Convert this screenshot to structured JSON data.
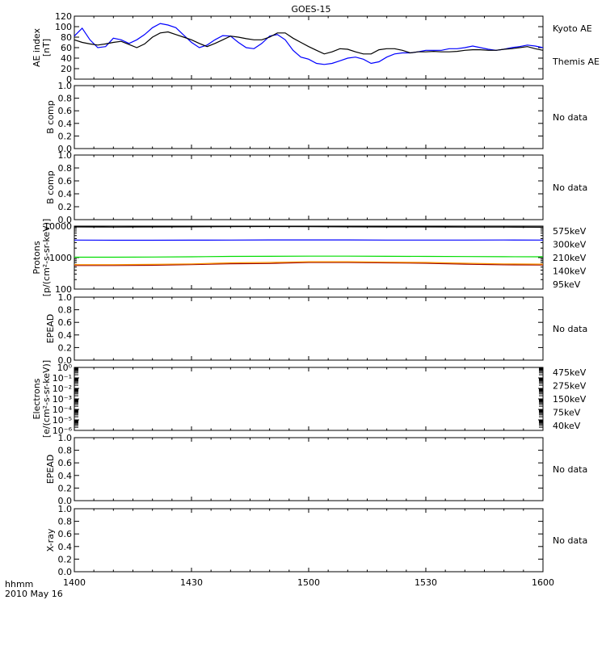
{
  "title": "GOES-15",
  "time_axis": {
    "format_label": "hhmm",
    "date_label": "2010 May 16",
    "ticks": [
      "1400",
      "1430",
      "1500",
      "1530",
      "1600"
    ],
    "start_min": 0,
    "end_min": 120
  },
  "chart_data": [
    {
      "id": "ae",
      "type": "line",
      "ylabel_lines": [
        "AE index",
        "[nT]"
      ],
      "ylim": [
        0,
        120
      ],
      "scale": "linear",
      "yticks": [
        "0",
        "20",
        "40",
        "60",
        "80",
        "100",
        "120"
      ],
      "tick_values": [
        0,
        20,
        40,
        60,
        80,
        100,
        120
      ],
      "x_minutes": [
        0,
        2,
        4,
        6,
        8,
        10,
        12,
        14,
        16,
        18,
        20,
        22,
        24,
        26,
        28,
        30,
        32,
        34,
        36,
        38,
        40,
        42,
        44,
        46,
        48,
        50,
        52,
        54,
        56,
        58,
        60,
        62,
        64,
        66,
        68,
        70,
        72,
        74,
        76,
        78,
        80,
        82,
        84,
        86,
        88,
        90,
        92,
        94,
        96,
        98,
        100,
        102,
        104,
        106,
        108,
        110,
        112,
        114,
        116,
        118,
        120
      ],
      "series": [
        {
          "name": "Kyoto AE",
          "color": "#0000ff",
          "values": [
            82,
            97,
            75,
            60,
            62,
            78,
            75,
            68,
            75,
            85,
            98,
            106,
            103,
            98,
            84,
            70,
            60,
            65,
            75,
            83,
            82,
            70,
            60,
            58,
            68,
            82,
            85,
            75,
            55,
            42,
            38,
            30,
            28,
            30,
            35,
            40,
            42,
            38,
            30,
            33,
            42,
            48,
            50,
            50,
            52,
            55,
            55,
            55,
            58,
            58,
            60,
            63,
            60,
            57,
            55,
            57,
            60,
            62,
            65,
            63,
            60
          ]
        },
        {
          "name": "Themis AE",
          "color": "#000000",
          "values": [
            75,
            70,
            67,
            65,
            67,
            70,
            72,
            66,
            60,
            67,
            80,
            88,
            90,
            85,
            80,
            75,
            68,
            62,
            68,
            75,
            82,
            80,
            77,
            75,
            75,
            80,
            88,
            88,
            78,
            70,
            62,
            55,
            48,
            52,
            58,
            57,
            52,
            48,
            48,
            56,
            58,
            58,
            55,
            50,
            52,
            52,
            53,
            52,
            52,
            53,
            55,
            56,
            56,
            55,
            55,
            57,
            58,
            60,
            62,
            58,
            55
          ]
        }
      ]
    },
    {
      "id": "bcomp1",
      "type": "line",
      "ylabel_lines": [
        "B comp"
      ],
      "ylim": [
        0,
        1
      ],
      "scale": "linear",
      "yticks": [
        "0.0",
        "0.2",
        "0.4",
        "0.6",
        "0.8",
        "1.0"
      ],
      "tick_values": [
        0,
        0.2,
        0.4,
        0.6,
        0.8,
        1.0
      ],
      "status": "No data",
      "series": []
    },
    {
      "id": "bcomp2",
      "type": "line",
      "ylabel_lines": [
        "B comp"
      ],
      "ylim": [
        0,
        1
      ],
      "scale": "linear",
      "yticks": [
        "0.0",
        "0.2",
        "0.4",
        "0.6",
        "0.8",
        "1.0"
      ],
      "tick_values": [
        0,
        0.2,
        0.4,
        0.6,
        0.8,
        1.0
      ],
      "status": "No data",
      "series": []
    },
    {
      "id": "protons",
      "type": "line",
      "ylabel_lines": [
        "Protons",
        "[p/(cm²-s-sr-keV)]"
      ],
      "ylim": [
        100,
        10000
      ],
      "scale": "log",
      "yticks": [
        "100",
        "1000",
        "10000"
      ],
      "tick_values": [
        100,
        1000,
        10000
      ],
      "x_minutes": [
        0,
        10,
        20,
        30,
        40,
        50,
        60,
        70,
        80,
        90,
        100,
        110,
        120
      ],
      "series": [
        {
          "name": "575keV",
          "color": "#990000",
          "values": [
            560,
            560,
            570,
            600,
            640,
            650,
            700,
            700,
            680,
            660,
            620,
            590,
            580
          ]
        },
        {
          "name": "300keV",
          "color": "#ff9900",
          "values": [
            600,
            600,
            610,
            630,
            680,
            700,
            740,
            740,
            720,
            700,
            660,
            630,
            620
          ]
        },
        {
          "name": "210keV",
          "color": "#00dd00",
          "values": [
            1030,
            1030,
            1040,
            1060,
            1090,
            1100,
            1110,
            1110,
            1100,
            1090,
            1080,
            1070,
            1060
          ]
        },
        {
          "name": "140keV",
          "color": "#0000ff",
          "values": [
            3600,
            3550,
            3550,
            3580,
            3600,
            3650,
            3650,
            3650,
            3600,
            3600,
            3600,
            3620,
            3600
          ]
        },
        {
          "name": "95keV",
          "color": "#000000",
          "values": [
            9400,
            9300,
            9400,
            9500,
            9600,
            9700,
            9600,
            9500,
            9400,
            9400,
            9300,
            9300,
            9200
          ]
        }
      ]
    },
    {
      "id": "epead1",
      "type": "line",
      "ylabel_lines": [
        "EPEAD"
      ],
      "ylim": [
        0,
        1
      ],
      "scale": "linear",
      "yticks": [
        "0.0",
        "0.2",
        "0.4",
        "0.6",
        "0.8",
        "1.0"
      ],
      "tick_values": [
        0,
        0.2,
        0.4,
        0.6,
        0.8,
        1.0
      ],
      "status": "No data",
      "series": []
    },
    {
      "id": "electrons",
      "type": "line",
      "ylabel_lines": [
        "Electrons",
        "[e/(cm²-s-sr-keV)]"
      ],
      "ylim": [
        -6,
        0
      ],
      "scale": "log",
      "yticks": [
        "10⁰",
        "10⁻¹",
        "10⁻²",
        "10⁻³",
        "10⁻⁴",
        "10⁻⁵",
        "10⁻⁶"
      ],
      "tick_values": [
        0,
        -1,
        -2,
        -3,
        -4,
        -5,
        -6
      ],
      "series": [
        {
          "name": "475keV",
          "color": "#990000",
          "values": []
        },
        {
          "name": "275keV",
          "color": "#ff9900",
          "values": []
        },
        {
          "name": "150keV",
          "color": "#00dd00",
          "values": []
        },
        {
          "name": "75keV",
          "color": "#0000ff",
          "values": []
        },
        {
          "name": "40keV",
          "color": "#000000",
          "values": []
        }
      ]
    },
    {
      "id": "epead2",
      "type": "line",
      "ylabel_lines": [
        "EPEAD"
      ],
      "ylim": [
        0,
        1
      ],
      "scale": "linear",
      "yticks": [
        "0.0",
        "0.2",
        "0.4",
        "0.6",
        "0.8",
        "1.0"
      ],
      "tick_values": [
        0,
        0.2,
        0.4,
        0.6,
        0.8,
        1.0
      ],
      "status": "No data",
      "series": []
    },
    {
      "id": "xray",
      "type": "line",
      "ylabel_lines": [
        "X-ray"
      ],
      "ylim": [
        0,
        1
      ],
      "scale": "linear",
      "yticks": [
        "0.0",
        "0.2",
        "0.4",
        "0.6",
        "0.8",
        "1.0"
      ],
      "tick_values": [
        0,
        0.2,
        0.4,
        0.6,
        0.8,
        1.0
      ],
      "status": "No data",
      "series": []
    }
  ]
}
